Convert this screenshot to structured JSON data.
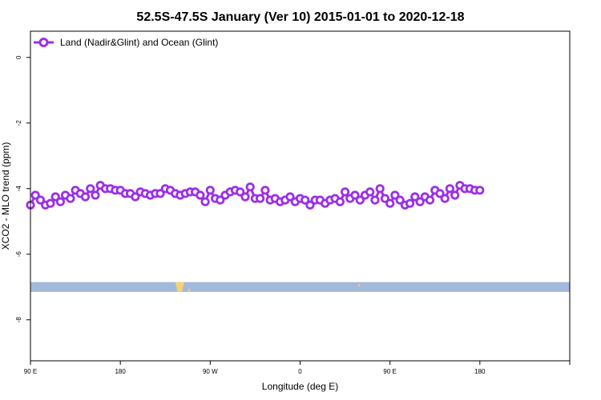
{
  "chart_data": {
    "type": "line",
    "title": "52.5S-47.5S January (Ver 10)   2015-01-01 to 2020-12-18",
    "xlabel": "Longitude (deg E)",
    "ylabel": "XCO2 - MLO trend (ppm)",
    "xlim": [
      -90,
      180
    ],
    "ylim": [
      -9.25,
      0.8
    ],
    "x_ticks": [
      {
        "value": -90,
        "label": "90 E"
      },
      {
        "value": -45,
        "label": "180"
      },
      {
        "value": 0,
        "label": "90 W"
      },
      {
        "value": 45,
        "label": "0"
      },
      {
        "value": 90,
        "label": "90 E"
      },
      {
        "value": 135,
        "label": "180"
      }
    ],
    "y_ticks": [
      {
        "value": 0,
        "label": "0"
      },
      {
        "value": -2,
        "label": "-2"
      },
      {
        "value": -4,
        "label": "-4"
      },
      {
        "value": -6,
        "label": "-6"
      },
      {
        "value": -8,
        "label": "-8"
      }
    ],
    "legend": {
      "position": "top-left"
    },
    "series": [
      {
        "name": "Land (Nadir&Glint) and Ocean (Glint)",
        "color": "#9b30e6",
        "x": [
          -90,
          -87.5,
          -85,
          -82.5,
          -80,
          -77.5,
          -75,
          -72.5,
          -70,
          -67.5,
          -65,
          -62.5,
          -60,
          -57.5,
          -55,
          -52.5,
          -50,
          -47.5,
          -45,
          -42.5,
          -40,
          -37.5,
          -35,
          -32.5,
          -30,
          -27.5,
          -25,
          -22.5,
          -20,
          -17.5,
          -15,
          -12.5,
          -10,
          -7.5,
          -5,
          -2.5,
          0,
          2.5,
          5,
          7.5,
          10,
          12.5,
          15,
          17.5,
          20,
          22.5,
          25,
          27.5,
          30,
          32.5,
          35,
          37.5,
          40,
          42.5,
          45,
          47.5,
          50,
          52.5,
          55,
          57.5,
          60,
          62.5,
          65,
          67.5,
          70,
          72.5,
          75,
          77.5,
          80,
          82.5,
          85,
          87.5,
          90,
          92.5,
          95,
          97.5,
          100,
          102.5,
          105,
          107.5,
          110,
          112.5,
          115,
          117.5,
          120,
          122.5,
          125,
          127.5,
          130,
          132.5,
          135
        ],
        "y": [
          -4.5,
          -4.2,
          -4.35,
          -4.5,
          -4.45,
          -4.25,
          -4.4,
          -4.2,
          -4.3,
          -4.05,
          -4.15,
          -4.25,
          -4.0,
          -4.2,
          -3.9,
          -4.0,
          -4.0,
          -4.05,
          -4.05,
          -4.15,
          -4.15,
          -4.25,
          -4.1,
          -4.15,
          -4.2,
          -4.15,
          -4.15,
          -4.0,
          -4.05,
          -4.15,
          -4.2,
          -4.15,
          -4.1,
          -4.1,
          -4.2,
          -4.4,
          -4.05,
          -4.3,
          -4.35,
          -4.2,
          -4.1,
          -4.05,
          -4.1,
          -4.25,
          -3.95,
          -4.3,
          -4.3,
          -4.05,
          -4.35,
          -4.3,
          -4.4,
          -4.35,
          -4.25,
          -4.4,
          -4.3,
          -4.35,
          -4.5,
          -4.35,
          -4.35,
          -4.45,
          -4.35,
          -4.3,
          -4.4,
          -4.1,
          -4.3,
          -4.2,
          -4.35,
          -4.2,
          -4.1,
          -4.35,
          -4.0,
          -4.3,
          -4.45,
          -4.2,
          -4.35,
          -4.5,
          -4.45,
          -4.25,
          -4.4,
          -4.25,
          -4.35,
          -4.05,
          -4.15,
          -4.3,
          -4.0,
          -4.2,
          -3.9,
          -4.0,
          -4.0,
          -4.05,
          -4.05
        ]
      }
    ],
    "map_strip": {
      "y_range": [
        -7.15,
        -6.85
      ],
      "ocean_color": "#a3b9dc",
      "land_color": "#f5d272",
      "land_segments": [
        {
          "x": [
            -17.5,
            -13.0
          ],
          "y": [
            -7.15,
            -6.85
          ]
        },
        {
          "x": [
            -11.0,
            -10.0
          ],
          "y": [
            -7.15,
            -7.05
          ]
        },
        {
          "x": [
            74.0,
            75.0
          ],
          "y": [
            -6.98,
            -6.92
          ]
        }
      ]
    }
  }
}
